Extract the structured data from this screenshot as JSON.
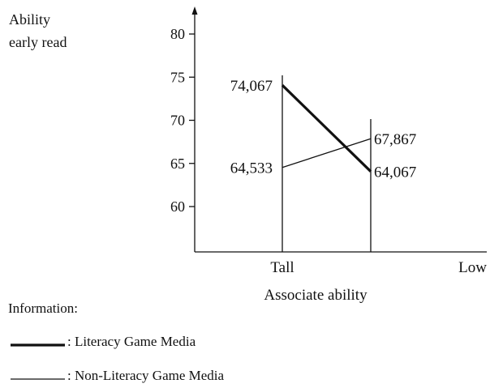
{
  "chart_data": {
    "type": "line",
    "title": "",
    "ylabel": [
      "Ability",
      "early read"
    ],
    "xlabel": "Associate ability",
    "categories": [
      "Tall",
      "Low"
    ],
    "yticks": [
      60,
      65,
      70,
      75,
      80
    ],
    "ylim": [
      55,
      85
    ],
    "series": [
      {
        "name": "Literacy Game Media",
        "values": [
          74.067,
          64.067
        ],
        "labels": [
          "74,067",
          "64,067"
        ],
        "style": "thick"
      },
      {
        "name": "Non-Literacy Game Media",
        "values": [
          64.533,
          67.867
        ],
        "labels": [
          "64,533",
          "67,867"
        ],
        "style": "thin"
      }
    ],
    "legend": {
      "title": "Information:",
      "placement": "bottom-left",
      "items": [
        {
          "text": ": Literacy Game Media",
          "style": "thick"
        },
        {
          "text": ": Non-Literacy Game Media",
          "style": "thin"
        }
      ]
    },
    "grid": false,
    "colors": {
      "line": "#111111",
      "background": "#ffffff"
    }
  }
}
